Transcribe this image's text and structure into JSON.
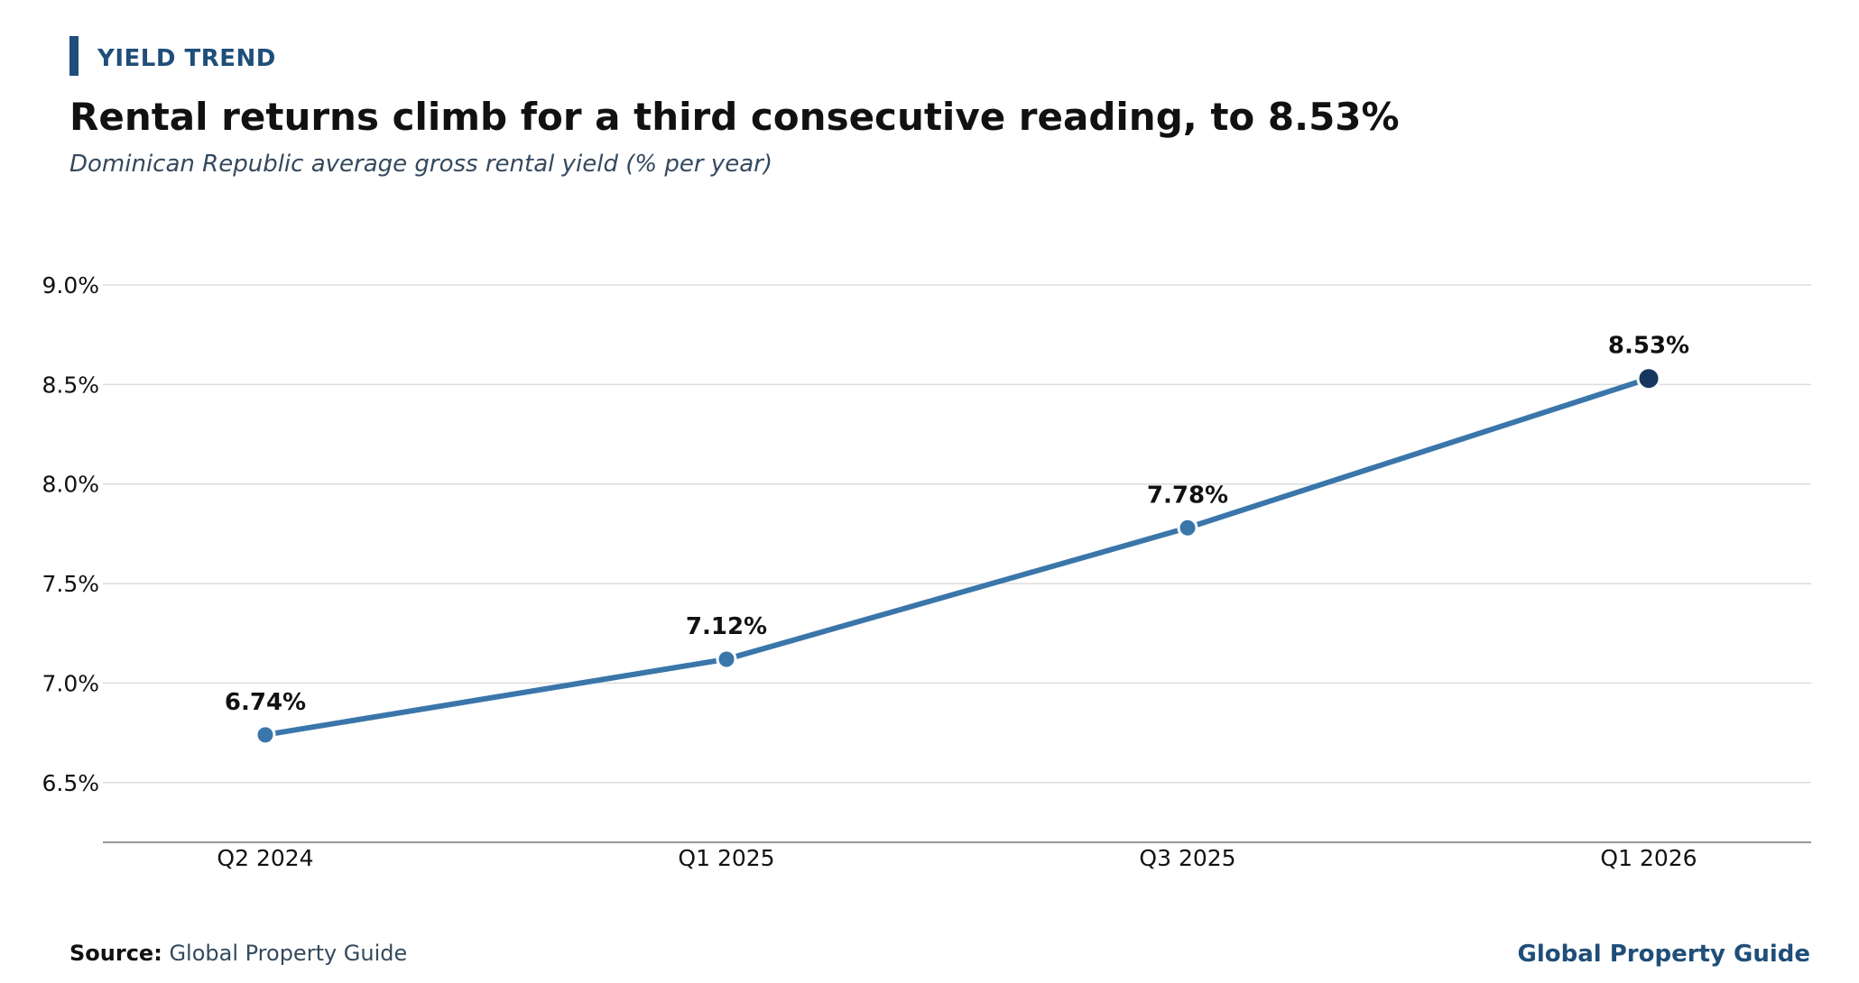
{
  "header": {
    "kicker": "YIELD TREND",
    "title": "Rental returns climb for a third consecutive reading, to 8.53%",
    "subtitle": "Dominican Republic average gross rental yield (% per year)"
  },
  "footer": {
    "source_label": "Source:",
    "source_text": "Global Property Guide",
    "brand": "Global Property Guide"
  },
  "colors": {
    "accent": "#1f4e79",
    "line": "#3a76aa",
    "highlight_point": "#17375e",
    "grid": "#dddddd",
    "axis": "#777777",
    "text": "#111111"
  },
  "chart_data": {
    "type": "line",
    "categories": [
      "Q2 2024",
      "Q1 2025",
      "Q3 2025",
      "Q1 2026"
    ],
    "series": [
      {
        "values": [
          6.74,
          7.12,
          7.78,
          8.53
        ],
        "data_labels": [
          "6.74%",
          "7.12%",
          "7.78%",
          "8.53%"
        ]
      }
    ],
    "ylim": [
      6.2,
      9.0
    ],
    "yticks": [
      6.5,
      7.0,
      7.5,
      8.0,
      8.5,
      9.0
    ],
    "ytick_labels": [
      "6.5%",
      "7.0%",
      "7.5%",
      "8.0%",
      "8.5%",
      "9.0%"
    ],
    "grid": "horizontal",
    "highlight_last_point": true
  }
}
